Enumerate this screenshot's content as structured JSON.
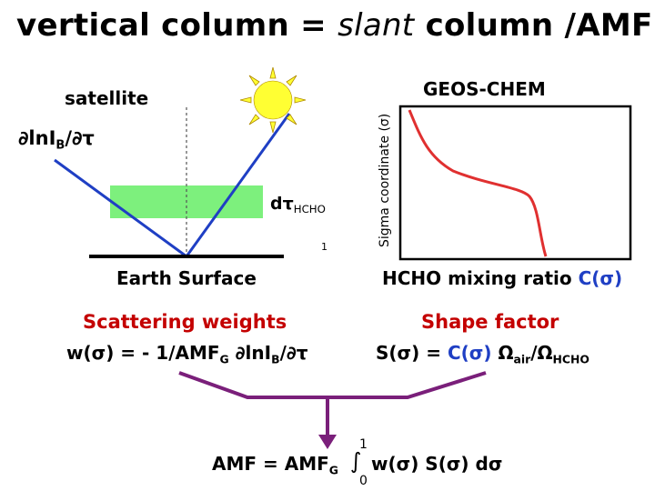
{
  "title": {
    "part1": "vertical column = ",
    "slant": "slant",
    "part2": " column /AMF"
  },
  "left_diagram": {
    "satellite_label": "satellite",
    "deriv_prefix": "∂lnI",
    "deriv_sub": "B",
    "deriv_suffix": "/∂τ",
    "dtau_prefix": "dτ",
    "dtau_sub": "HCHO",
    "marker_one": "1",
    "surface_label": "Earth Surface"
  },
  "right_diagram": {
    "model_label": "GEOS-CHEM",
    "y_axis_label": "Sigma coordinate (σ)",
    "x_label_prefix": "HCHO mixing ratio ",
    "x_label_var": "C(σ)"
  },
  "scattering": {
    "heading": "Scattering weights",
    "eq_prefix": "w(σ) = - 1/AMF",
    "eq_sub_g": "G",
    "eq_mid": " ∂lnI",
    "eq_sub_b": "B",
    "eq_suffix": "/∂τ"
  },
  "shape": {
    "heading": "Shape factor",
    "eq_prefix": "S(σ) = ",
    "eq_c": "C(σ)",
    "eq_omega1": " Ω",
    "eq_sub_air": "air",
    "eq_slash": "/Ω",
    "eq_sub_hcho": "HCHO"
  },
  "amf": {
    "prefix": "AMF = AMF",
    "sub_g": "G",
    "integral": "∫",
    "upper": "1",
    "lower": "0",
    "body": "w(σ) S(σ) dσ"
  },
  "colors": {
    "ray_blue": "#1f3fc4",
    "curve_red": "#e03030",
    "layer_green": "#7df07d",
    "arrow_purple": "#7a1f7a",
    "sun_yellow": "#ffff33"
  },
  "icons": [
    "sun-icon",
    "satellite-ray-icon"
  ]
}
